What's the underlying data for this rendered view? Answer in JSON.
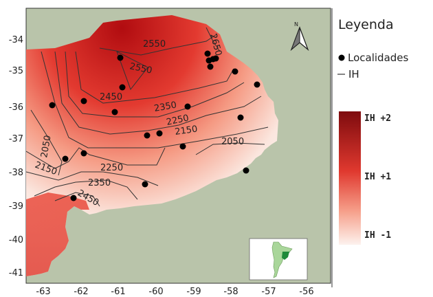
{
  "map": {
    "x_ticks": [
      "-63",
      "-62",
      "-61",
      "-60",
      "-59",
      "-58",
      "-57",
      "-56"
    ],
    "y_ticks": [
      "-34",
      "-35",
      "-36",
      "-37",
      "-38",
      "-39",
      "-40",
      "-41"
    ],
    "contour_labels": [
      "2550",
      "2550",
      "2450",
      "2350",
      "2250",
      "2150",
      "2050",
      "2050",
      "2150",
      "2250",
      "2350",
      "2450",
      "2650"
    ],
    "north_label": "N",
    "colors": {
      "background": "#b9c4aa",
      "high": "#b50f12",
      "mid": "#e8493d",
      "low": "#fbeee9",
      "locality": "#000000",
      "contour": "#333333",
      "inset_land": "#a9d69a",
      "inset_province": "#1f8a3a"
    }
  },
  "legend": {
    "title": "Leyenda",
    "localities_label": "Localidades",
    "ih_label": "IH",
    "scale_top": "IH +2",
    "scale_mid": "IH +1",
    "scale_bottom": "IH -1"
  }
}
